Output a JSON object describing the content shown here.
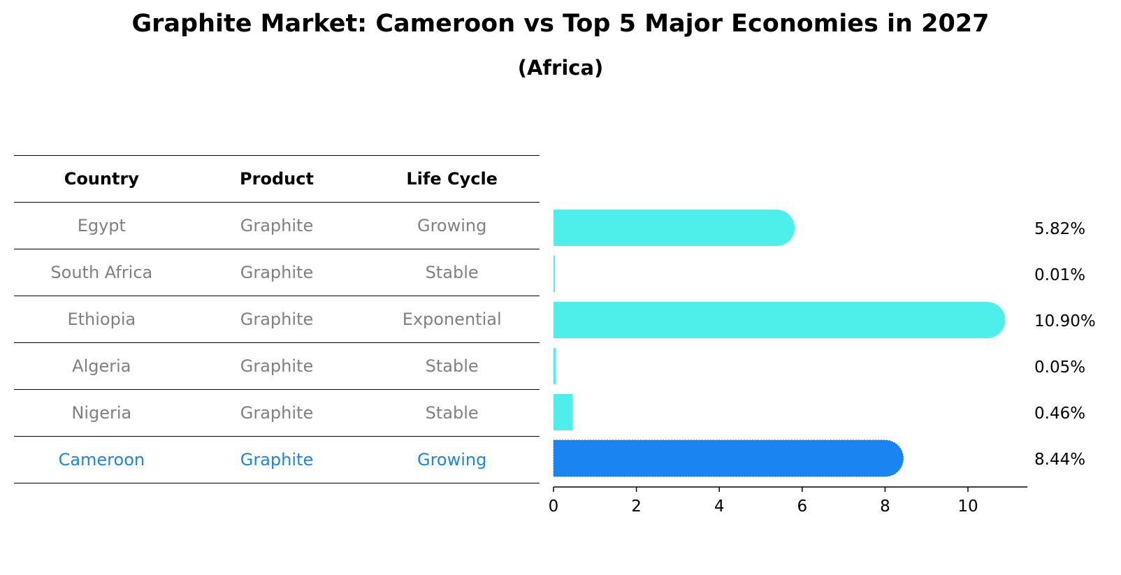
{
  "title": "Graphite Market: Cameroon vs Top 5 Major Economies in 2027",
  "subtitle": "(Africa)",
  "table": {
    "headers": [
      "Country",
      "Product",
      "Life Cycle"
    ],
    "rows": [
      {
        "country": "Egypt",
        "product": "Graphite",
        "life_cycle": "Growing"
      },
      {
        "country": "South Africa",
        "product": "Graphite",
        "life_cycle": "Stable"
      },
      {
        "country": "Ethiopia",
        "product": "Graphite",
        "life_cycle": "Exponential"
      },
      {
        "country": "Algeria",
        "product": "Graphite",
        "life_cycle": "Stable"
      },
      {
        "country": "Nigeria",
        "product": "Graphite",
        "life_cycle": "Stable"
      },
      {
        "country": "Cameroon",
        "product": "Graphite",
        "life_cycle": "Growing"
      }
    ]
  },
  "chart_data": {
    "type": "bar",
    "orientation": "horizontal",
    "title": "Graphite Market: Cameroon vs Top 5 Major Economies in 2027",
    "subtitle": "(Africa)",
    "categories": [
      "Egypt",
      "South Africa",
      "Ethiopia",
      "Algeria",
      "Nigeria",
      "Cameroon"
    ],
    "values": [
      5.82,
      0.01,
      10.9,
      0.05,
      0.46,
      8.44
    ],
    "value_labels": [
      "5.82%",
      "0.01%",
      "10.90%",
      "0.05%",
      "0.46%",
      "8.44%"
    ],
    "highlight": "Cameroon",
    "xlim": [
      0,
      11.4
    ],
    "xticks": [
      0,
      2,
      4,
      6,
      8,
      10
    ],
    "grid": false,
    "colors": {
      "default": "#4eeeeb",
      "highlight": "#1a85f0"
    }
  }
}
